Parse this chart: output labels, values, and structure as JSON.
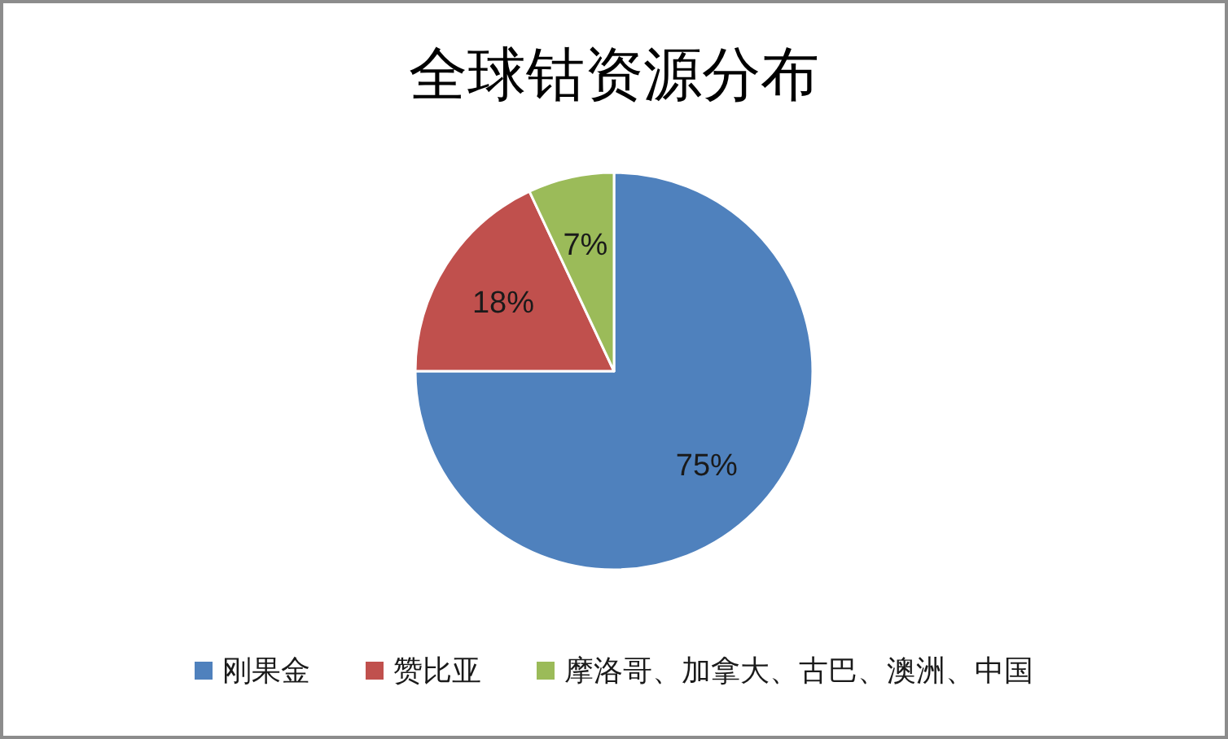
{
  "chart_data": {
    "type": "pie",
    "title": "全球钴资源分布",
    "categories": [
      "刚果金",
      "赞比亚",
      "摩洛哥、加拿大、古巴、澳洲、中国"
    ],
    "values": [
      75,
      18,
      7
    ],
    "colors": [
      "#4f81bd",
      "#c0504d",
      "#9bbb59"
    ],
    "value_labels": [
      "75%",
      "18%",
      "7%"
    ],
    "legend": "bottom"
  }
}
